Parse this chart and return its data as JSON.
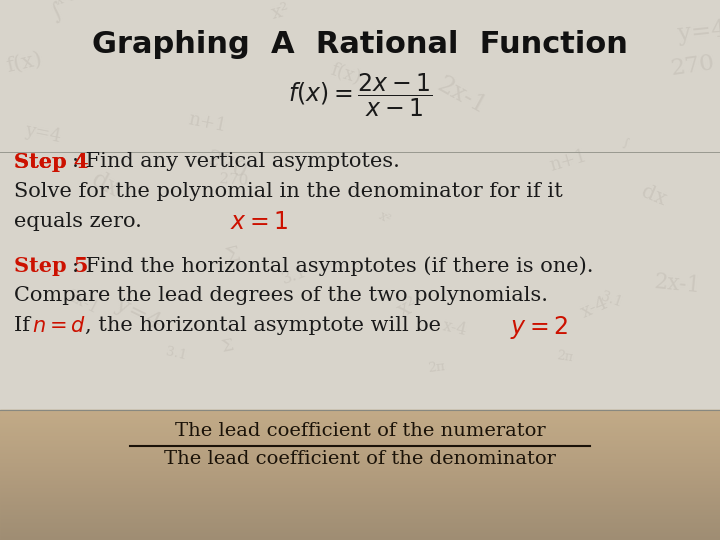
{
  "title": "Graphing  A  Rational  Function",
  "title_fontsize": 22,
  "title_color": "#111111",
  "bg_color": "#ddd8cc",
  "bottom_photo_color_top": "#c8bfb0",
  "bottom_photo_color_mid": "#b0a090",
  "step4_label": "Step 4",
  "step4_colon_text": ": Find any vertical asymptotes.",
  "step4_line2": "Solve for the polynomial in the denominator for if it",
  "step4_line3": "equals zero.",
  "step5_label": "Step 5",
  "step5_colon_text": ": Find the horizontal asymptotes (if there is one).",
  "step5_line2": "Compare the lead degrees of the two polynomials.",
  "step5_line3_rest": ", the horizontal asymptote will be",
  "fraction_numerator": "The lead coefficient of the numerator",
  "fraction_denominator": "The lead coefficient of the denominator",
  "red_color": "#cc1100",
  "dark_color": "#1a1a1a",
  "text_fontsize": 15,
  "bottom_text_color": "#1a1208"
}
